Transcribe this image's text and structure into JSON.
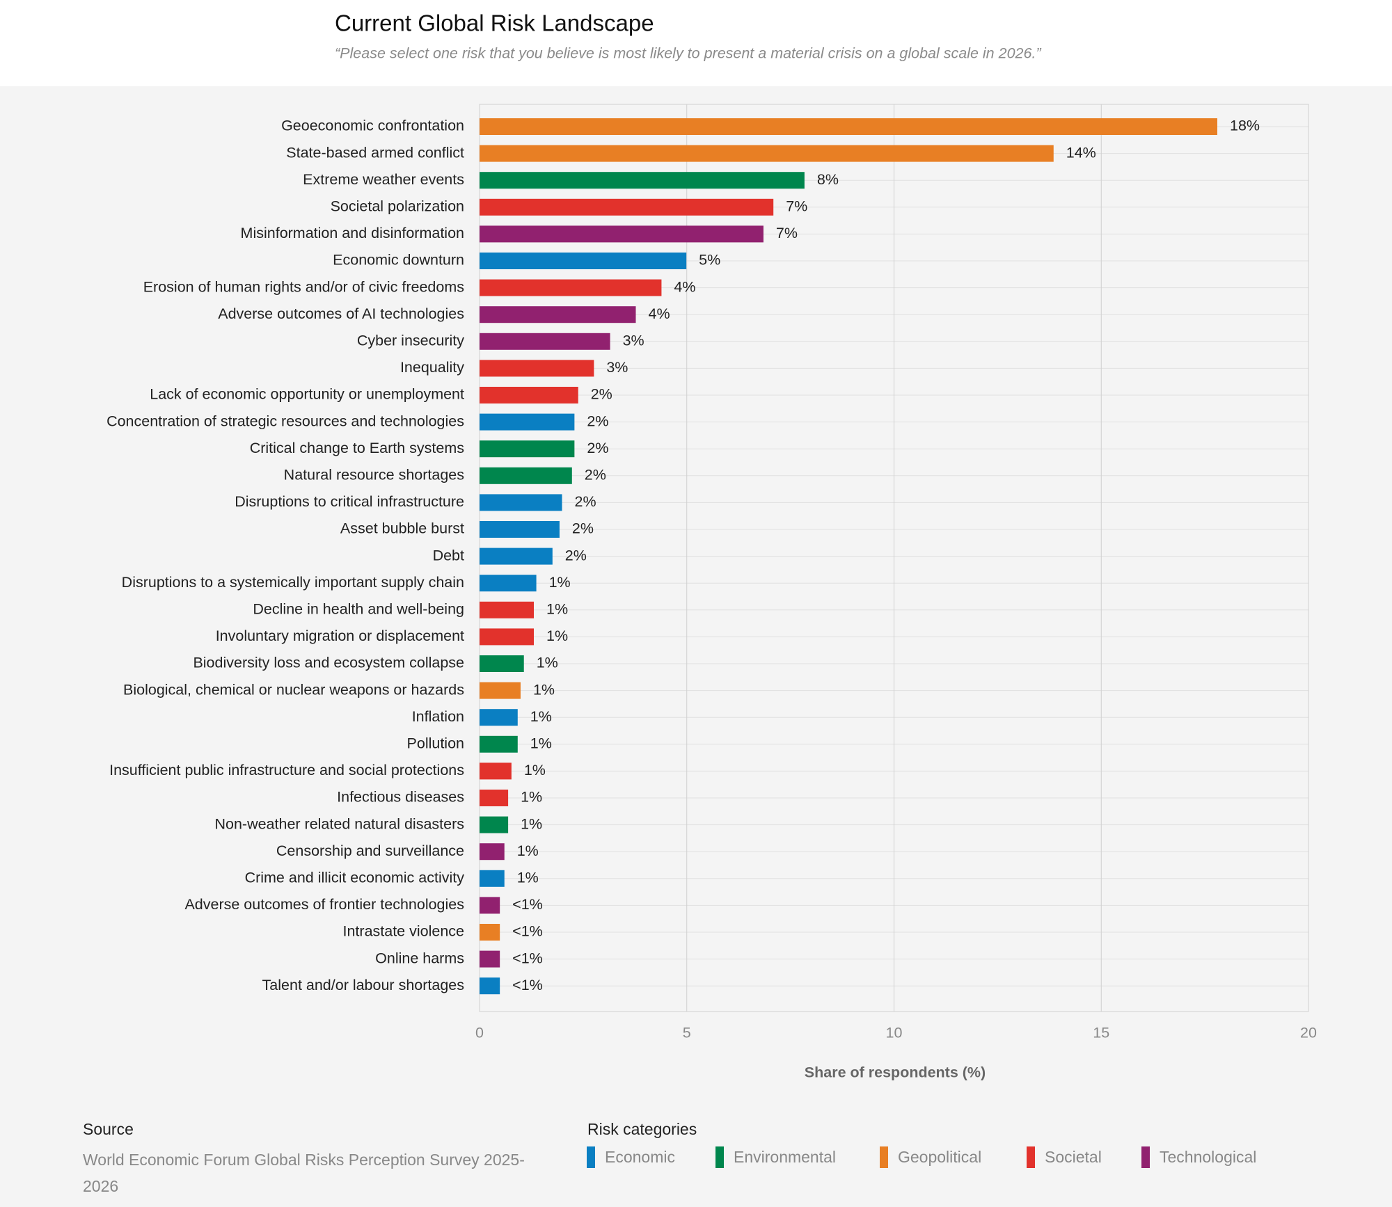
{
  "chart_data": {
    "type": "hbar",
    "title": "Current Global Risk Landscape",
    "subtitle": "“Please select one risk that you believe is most likely to present a material crisis on a global scale in 2026.”",
    "x_label": "Share of respondents (%)",
    "categories": [
      "Geoeconomic confrontation",
      "State-based armed conflict",
      "Extreme weather events",
      "Societal polarization",
      "Misinformation and disinformation",
      "Economic downturn",
      "Erosion of human rights and/or of civic freedoms",
      "Adverse outcomes of AI technologies",
      "Cyber insecurity",
      "Inequality",
      "Lack of economic opportunity or unemployment",
      "Concentration of strategic resources and technologies",
      "Critical change to Earth systems",
      "Natural resource shortages",
      "Disruptions to critical infrastructure",
      "Asset bubble burst",
      "Debt",
      "Disruptions to a systemically important supply chain",
      "Decline in health and well-being",
      "Involuntary migration or displacement",
      "Biodiversity loss and ecosystem collapse",
      "Biological, chemical or nuclear weapons or hazards",
      "Inflation",
      "Pollution",
      "Insufficient public infrastructure and social protections",
      "Infectious diseases",
      "Non-weather related natural disasters",
      "Censorship and surveillance",
      "Crime and illicit economic activity",
      "Adverse outcomes of frontier technologies",
      "Intrastate violence",
      "Online harms",
      "Talent and/or labour shortages"
    ],
    "values": [
      17.8,
      13.85,
      7.84,
      7.09,
      6.85,
      4.99,
      4.39,
      3.77,
      3.15,
      2.76,
      2.38,
      2.29,
      2.29,
      2.23,
      1.99,
      1.93,
      1.76,
      1.37,
      1.31,
      1.31,
      1.07,
      0.99,
      0.92,
      0.92,
      0.77,
      0.69,
      0.69,
      0.6,
      0.6,
      0.49,
      0.49,
      0.49,
      0.49
    ],
    "value_labels": [
      "18%",
      "14%",
      "8%",
      "7%",
      "7%",
      "5%",
      "4%",
      "4%",
      "3%",
      "3%",
      "2%",
      "2%",
      "2%",
      "2%",
      "2%",
      "2%",
      "2%",
      "1%",
      "1%",
      "1%",
      "1%",
      "1%",
      "1%",
      "1%",
      "1%",
      "1%",
      "1%",
      "1%",
      "1%",
      "<1%",
      "<1%",
      "<1%",
      "<1%"
    ],
    "colors": [
      "#e87f24",
      "#e87f24",
      "#00864d",
      "#e2322c",
      "#91216f",
      "#0a7fc2",
      "#e2322c",
      "#91216f",
      "#91216f",
      "#e2322c",
      "#e2322c",
      "#0a7fc2",
      "#00864d",
      "#00864d",
      "#0a7fc2",
      "#0a7fc2",
      "#0a7fc2",
      "#0a7fc2",
      "#e2322c",
      "#e2322c",
      "#00864d",
      "#e87f24",
      "#0a7fc2",
      "#00864d",
      "#e2322c",
      "#e2322c",
      "#00864d",
      "#91216f",
      "#0a7fc2",
      "#91216f",
      "#e87f24",
      "#91216f",
      "#0a7fc2"
    ],
    "xlim": [
      0,
      20
    ],
    "xticks": [
      0,
      5,
      10,
      15,
      20
    ],
    "grid": true,
    "legend": {
      "title": "Risk categories",
      "items": [
        {
          "name": "Economic",
          "color": "#0a7fc2"
        },
        {
          "name": "Environmental",
          "color": "#00864d"
        },
        {
          "name": "Geopolitical",
          "color": "#e87f24"
        },
        {
          "name": "Societal",
          "color": "#e2322c"
        },
        {
          "name": "Technological",
          "color": "#91216f"
        }
      ]
    },
    "source": {
      "title": "Source",
      "text": "World Economic Forum Global Risks Perception Survey 2025-2026"
    }
  }
}
